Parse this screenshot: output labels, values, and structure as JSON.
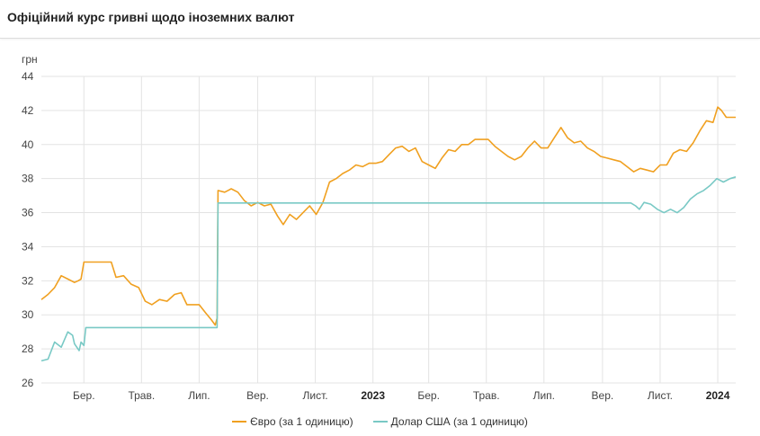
{
  "chart_data": {
    "type": "line",
    "title": "Офіційний курс гривні щодо іноземних валют",
    "ylabel": "грн",
    "ylim": [
      26,
      44
    ],
    "yticks": [
      26,
      28,
      30,
      32,
      34,
      36,
      38,
      40,
      42,
      44
    ],
    "xlim": [
      "2022-01-15",
      "2024-01-20"
    ],
    "xticks": [
      {
        "date": "2022-03-01",
        "label": "Бер.",
        "bold": false
      },
      {
        "date": "2022-05-01",
        "label": "Трав.",
        "bold": false
      },
      {
        "date": "2022-07-01",
        "label": "Лип.",
        "bold": false
      },
      {
        "date": "2022-09-01",
        "label": "Вер.",
        "bold": false
      },
      {
        "date": "2022-11-01",
        "label": "Лист.",
        "bold": false
      },
      {
        "date": "2023-01-01",
        "label": "2023",
        "bold": true
      },
      {
        "date": "2023-03-01",
        "label": "Бер.",
        "bold": false
      },
      {
        "date": "2023-05-01",
        "label": "Трав.",
        "bold": false
      },
      {
        "date": "2023-07-01",
        "label": "Лип.",
        "bold": false
      },
      {
        "date": "2023-09-01",
        "label": "Вер.",
        "bold": false
      },
      {
        "date": "2023-11-01",
        "label": "Лист.",
        "bold": false
      },
      {
        "date": "2024-01-01",
        "label": "2024",
        "bold": true
      }
    ],
    "grid": true,
    "legend_position": "bottom",
    "series": [
      {
        "name": "Євро (за 1 одиницю)",
        "color": "#f0a020",
        "points": [
          [
            "2022-01-15",
            30.9
          ],
          [
            "2022-01-22",
            31.2
          ],
          [
            "2022-01-29",
            31.6
          ],
          [
            "2022-02-05",
            32.3
          ],
          [
            "2022-02-12",
            32.1
          ],
          [
            "2022-02-19",
            31.9
          ],
          [
            "2022-02-23",
            32.0
          ],
          [
            "2022-02-26",
            32.1
          ],
          [
            "2022-03-01",
            33.1
          ],
          [
            "2022-03-10",
            33.1
          ],
          [
            "2022-03-20",
            33.1
          ],
          [
            "2022-03-30",
            33.1
          ],
          [
            "2022-04-04",
            32.2
          ],
          [
            "2022-04-12",
            32.3
          ],
          [
            "2022-04-20",
            31.8
          ],
          [
            "2022-04-28",
            31.6
          ],
          [
            "2022-05-05",
            30.8
          ],
          [
            "2022-05-12",
            30.6
          ],
          [
            "2022-05-20",
            30.9
          ],
          [
            "2022-05-28",
            30.8
          ],
          [
            "2022-06-05",
            31.2
          ],
          [
            "2022-06-12",
            31.3
          ],
          [
            "2022-06-18",
            30.6
          ],
          [
            "2022-06-25",
            30.6
          ],
          [
            "2022-07-01",
            30.6
          ],
          [
            "2022-07-08",
            30.1
          ],
          [
            "2022-07-14",
            29.7
          ],
          [
            "2022-07-18",
            29.4
          ],
          [
            "2022-07-20",
            29.8
          ],
          [
            "2022-07-21",
            37.3
          ],
          [
            "2022-07-28",
            37.2
          ],
          [
            "2022-08-04",
            37.4
          ],
          [
            "2022-08-11",
            37.2
          ],
          [
            "2022-08-18",
            36.7
          ],
          [
            "2022-08-25",
            36.4
          ],
          [
            "2022-09-01",
            36.6
          ],
          [
            "2022-09-08",
            36.4
          ],
          [
            "2022-09-15",
            36.5
          ],
          [
            "2022-09-22",
            35.8
          ],
          [
            "2022-09-28",
            35.3
          ],
          [
            "2022-10-05",
            35.9
          ],
          [
            "2022-10-12",
            35.6
          ],
          [
            "2022-10-19",
            36.0
          ],
          [
            "2022-10-26",
            36.4
          ],
          [
            "2022-11-02",
            35.9
          ],
          [
            "2022-11-09",
            36.6
          ],
          [
            "2022-11-16",
            37.8
          ],
          [
            "2022-11-23",
            38.0
          ],
          [
            "2022-11-30",
            38.3
          ],
          [
            "2022-12-07",
            38.5
          ],
          [
            "2022-12-14",
            38.8
          ],
          [
            "2022-12-21",
            38.7
          ],
          [
            "2022-12-28",
            38.9
          ],
          [
            "2023-01-04",
            38.9
          ],
          [
            "2023-01-11",
            39.0
          ],
          [
            "2023-01-18",
            39.4
          ],
          [
            "2023-01-25",
            39.8
          ],
          [
            "2023-02-01",
            39.9
          ],
          [
            "2023-02-08",
            39.6
          ],
          [
            "2023-02-15",
            39.8
          ],
          [
            "2023-02-22",
            39.0
          ],
          [
            "2023-03-01",
            38.8
          ],
          [
            "2023-03-08",
            38.6
          ],
          [
            "2023-03-15",
            39.2
          ],
          [
            "2023-03-22",
            39.7
          ],
          [
            "2023-03-29",
            39.6
          ],
          [
            "2023-04-05",
            40.0
          ],
          [
            "2023-04-12",
            40.0
          ],
          [
            "2023-04-19",
            40.3
          ],
          [
            "2023-04-26",
            40.3
          ],
          [
            "2023-05-03",
            40.3
          ],
          [
            "2023-05-10",
            39.9
          ],
          [
            "2023-05-17",
            39.6
          ],
          [
            "2023-05-24",
            39.3
          ],
          [
            "2023-05-31",
            39.1
          ],
          [
            "2023-06-07",
            39.3
          ],
          [
            "2023-06-14",
            39.8
          ],
          [
            "2023-06-21",
            40.2
          ],
          [
            "2023-06-28",
            39.8
          ],
          [
            "2023-07-05",
            39.8
          ],
          [
            "2023-07-12",
            40.4
          ],
          [
            "2023-07-19",
            41.0
          ],
          [
            "2023-07-26",
            40.4
          ],
          [
            "2023-08-02",
            40.1
          ],
          [
            "2023-08-09",
            40.2
          ],
          [
            "2023-08-16",
            39.8
          ],
          [
            "2023-08-23",
            39.6
          ],
          [
            "2023-08-30",
            39.3
          ],
          [
            "2023-09-06",
            39.2
          ],
          [
            "2023-09-13",
            39.1
          ],
          [
            "2023-09-20",
            39.0
          ],
          [
            "2023-09-27",
            38.7
          ],
          [
            "2023-10-04",
            38.4
          ],
          [
            "2023-10-11",
            38.6
          ],
          [
            "2023-10-18",
            38.5
          ],
          [
            "2023-10-25",
            38.4
          ],
          [
            "2023-11-01",
            38.8
          ],
          [
            "2023-11-08",
            38.8
          ],
          [
            "2023-11-15",
            39.5
          ],
          [
            "2023-11-22",
            39.7
          ],
          [
            "2023-11-29",
            39.6
          ],
          [
            "2023-12-06",
            40.1
          ],
          [
            "2023-12-13",
            40.8
          ],
          [
            "2023-12-20",
            41.4
          ],
          [
            "2023-12-27",
            41.3
          ],
          [
            "2024-01-01",
            42.2
          ],
          [
            "2024-01-05",
            42.0
          ],
          [
            "2024-01-10",
            41.6
          ],
          [
            "2024-01-15",
            41.6
          ],
          [
            "2024-01-20",
            41.6
          ]
        ]
      },
      {
        "name": "Долар США (за 1 одиницю)",
        "color": "#79c9c5",
        "points": [
          [
            "2022-01-15",
            27.3
          ],
          [
            "2022-01-22",
            27.4
          ],
          [
            "2022-01-29",
            28.4
          ],
          [
            "2022-02-05",
            28.1
          ],
          [
            "2022-02-12",
            29.0
          ],
          [
            "2022-02-17",
            28.8
          ],
          [
            "2022-02-19",
            28.3
          ],
          [
            "2022-02-24",
            27.9
          ],
          [
            "2022-02-26",
            28.4
          ],
          [
            "2022-03-01",
            28.2
          ],
          [
            "2022-03-03",
            29.25
          ],
          [
            "2022-04-01",
            29.25
          ],
          [
            "2022-05-01",
            29.25
          ],
          [
            "2022-06-01",
            29.25
          ],
          [
            "2022-07-01",
            29.25
          ],
          [
            "2022-07-20",
            29.25
          ],
          [
            "2022-07-21",
            36.57
          ],
          [
            "2022-09-01",
            36.57
          ],
          [
            "2022-11-01",
            36.57
          ],
          [
            "2023-01-01",
            36.57
          ],
          [
            "2023-03-01",
            36.57
          ],
          [
            "2023-05-01",
            36.57
          ],
          [
            "2023-07-01",
            36.57
          ],
          [
            "2023-09-01",
            36.57
          ],
          [
            "2023-10-01",
            36.57
          ],
          [
            "2023-10-06",
            36.4
          ],
          [
            "2023-10-10",
            36.2
          ],
          [
            "2023-10-15",
            36.6
          ],
          [
            "2023-10-22",
            36.5
          ],
          [
            "2023-10-29",
            36.2
          ],
          [
            "2023-11-05",
            36.0
          ],
          [
            "2023-11-12",
            36.2
          ],
          [
            "2023-11-19",
            36.0
          ],
          [
            "2023-11-26",
            36.3
          ],
          [
            "2023-12-03",
            36.8
          ],
          [
            "2023-12-10",
            37.1
          ],
          [
            "2023-12-17",
            37.3
          ],
          [
            "2023-12-24",
            37.6
          ],
          [
            "2023-12-31",
            38.0
          ],
          [
            "2024-01-07",
            37.8
          ],
          [
            "2024-01-14",
            38.0
          ],
          [
            "2024-01-20",
            38.1
          ]
        ]
      }
    ]
  }
}
